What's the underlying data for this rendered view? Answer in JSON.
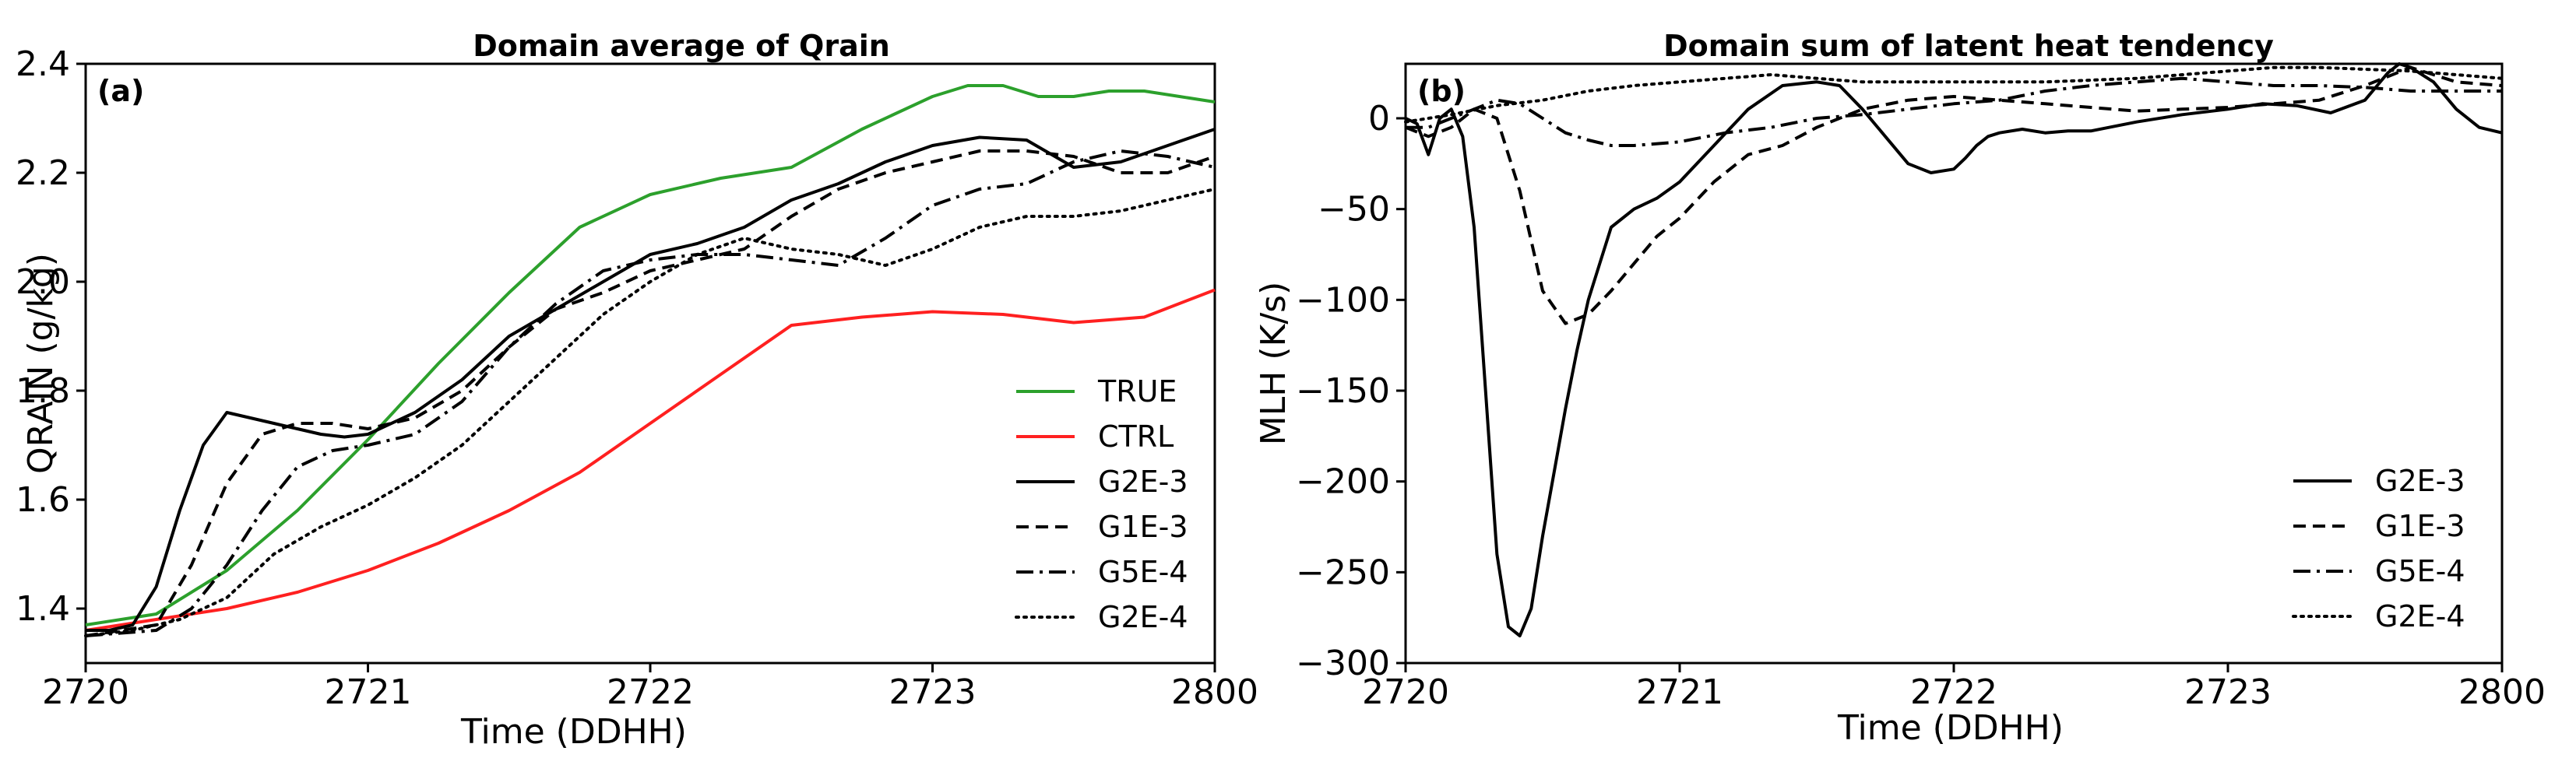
{
  "chart_data": [
    {
      "type": "line",
      "panel_label": "(a)",
      "title": "Domain average of Qrain",
      "xlabel": "Time (DDHH)",
      "ylabel": "QRAIN (g/kg)",
      "xlim": [
        0,
        96
      ],
      "ylim": [
        1.3,
        2.4
      ],
      "x_ticks": [
        0,
        24,
        48,
        72,
        96
      ],
      "x_tick_labels": [
        "2720",
        "2721",
        "2722",
        "2723",
        "2800"
      ],
      "y_ticks": [
        1.4,
        1.6,
        1.8,
        2.0,
        2.2,
        2.4
      ],
      "y_tick_labels": [
        "1.4",
        "1.6",
        "1.8",
        "2.0",
        "2.2",
        "2.4"
      ],
      "legend_position": "lower-right",
      "series": [
        {
          "name": "TRUE",
          "color": "#2ca02c",
          "dash": "solid",
          "x": [
            0,
            6,
            12,
            18,
            24,
            30,
            36,
            42,
            48,
            54,
            60,
            66,
            72,
            75,
            78,
            81,
            84,
            87,
            90,
            93,
            96
          ],
          "y": [
            1.37,
            1.39,
            1.47,
            1.58,
            1.71,
            1.85,
            1.98,
            2.1,
            2.16,
            2.19,
            2.21,
            2.28,
            2.34,
            2.36,
            2.36,
            2.34,
            2.34,
            2.35,
            2.35,
            2.34,
            2.33
          ]
        },
        {
          "name": "CTRL",
          "color": "#ff2020",
          "dash": "solid",
          "x": [
            0,
            6,
            12,
            18,
            24,
            30,
            36,
            42,
            48,
            54,
            60,
            66,
            72,
            78,
            84,
            90,
            96
          ],
          "y": [
            1.36,
            1.38,
            1.4,
            1.43,
            1.47,
            1.52,
            1.58,
            1.65,
            1.74,
            1.83,
            1.92,
            1.935,
            1.945,
            1.94,
            1.925,
            1.935,
            1.985
          ]
        },
        {
          "name": "G2E-3",
          "color": "#000000",
          "dash": "solid",
          "x": [
            0,
            2,
            4,
            6,
            8,
            10,
            12,
            14,
            16,
            18,
            20,
            22,
            24,
            28,
            32,
            36,
            40,
            44,
            48,
            52,
            56,
            60,
            64,
            68,
            72,
            76,
            80,
            84,
            88,
            92,
            96
          ],
          "y": [
            1.36,
            1.36,
            1.37,
            1.44,
            1.58,
            1.7,
            1.76,
            1.75,
            1.74,
            1.73,
            1.72,
            1.715,
            1.72,
            1.76,
            1.82,
            1.9,
            1.95,
            2.0,
            2.05,
            2.07,
            2.1,
            2.15,
            2.18,
            2.22,
            2.25,
            2.265,
            2.26,
            2.21,
            2.22,
            2.25,
            2.28
          ]
        },
        {
          "name": "G1E-3",
          "color": "#000000",
          "dash": "dashed",
          "x": [
            0,
            3,
            6,
            9,
            12,
            15,
            18,
            21,
            24,
            28,
            32,
            36,
            40,
            44,
            48,
            52,
            56,
            60,
            64,
            68,
            72,
            76,
            80,
            84,
            88,
            92,
            96
          ],
          "y": [
            1.35,
            1.36,
            1.37,
            1.48,
            1.63,
            1.72,
            1.74,
            1.74,
            1.73,
            1.75,
            1.8,
            1.88,
            1.95,
            1.98,
            2.02,
            2.04,
            2.06,
            2.12,
            2.17,
            2.2,
            2.22,
            2.24,
            2.24,
            2.23,
            2.2,
            2.2,
            2.23
          ]
        },
        {
          "name": "G5E-4",
          "color": "#000000",
          "dash": "dashdot",
          "x": [
            0,
            3,
            6,
            9,
            12,
            15,
            18,
            21,
            24,
            28,
            32,
            36,
            40,
            44,
            48,
            52,
            56,
            60,
            64,
            68,
            72,
            76,
            80,
            84,
            88,
            92,
            96
          ],
          "y": [
            1.35,
            1.355,
            1.36,
            1.4,
            1.48,
            1.58,
            1.66,
            1.69,
            1.7,
            1.72,
            1.78,
            1.88,
            1.96,
            2.02,
            2.04,
            2.05,
            2.05,
            2.04,
            2.03,
            2.08,
            2.14,
            2.17,
            2.18,
            2.22,
            2.24,
            2.23,
            2.21
          ]
        },
        {
          "name": "G2E-4",
          "color": "#000000",
          "dash": "dotted",
          "x": [
            0,
            4,
            8,
            12,
            16,
            20,
            24,
            28,
            32,
            36,
            40,
            44,
            48,
            52,
            56,
            60,
            64,
            68,
            72,
            76,
            80,
            84,
            88,
            92,
            96
          ],
          "y": [
            1.35,
            1.36,
            1.38,
            1.42,
            1.5,
            1.55,
            1.59,
            1.64,
            1.7,
            1.78,
            1.86,
            1.94,
            2.0,
            2.05,
            2.08,
            2.06,
            2.05,
            2.03,
            2.06,
            2.1,
            2.12,
            2.12,
            2.13,
            2.15,
            2.17
          ]
        }
      ]
    },
    {
      "type": "line",
      "panel_label": "(b)",
      "title": "Domain sum of latent heat tendency",
      "xlabel": "Time (DDHH)",
      "ylabel": "MLH (K/s)",
      "xlim": [
        0,
        96
      ],
      "ylim": [
        -300,
        30
      ],
      "x_ticks": [
        0,
        24,
        48,
        72,
        96
      ],
      "x_tick_labels": [
        "2720",
        "2721",
        "2722",
        "2723",
        "2800"
      ],
      "y_ticks": [
        0,
        -50,
        -100,
        -150,
        -200,
        -250,
        -300
      ],
      "y_tick_labels": [
        "0",
        "−50",
        "−100",
        "−150",
        "−200",
        "−250",
        "−300"
      ],
      "legend_position": "lower-right",
      "series": [
        {
          "name": "G2E-3",
          "color": "#000000",
          "dash": "solid",
          "x": [
            0,
            1,
            2,
            3,
            4,
            5,
            6,
            7,
            8,
            9,
            10,
            11,
            12,
            13,
            14,
            15,
            16,
            17,
            18,
            20,
            22,
            24,
            27,
            30,
            33,
            36,
            38,
            40,
            42,
            44,
            46,
            48,
            49,
            50,
            51,
            52,
            54,
            56,
            58,
            60,
            64,
            68,
            72,
            75,
            78,
            81,
            84,
            86,
            87,
            88,
            90,
            92,
            94,
            96
          ],
          "y": [
            0,
            -3,
            -20,
            0,
            5,
            -10,
            -60,
            -150,
            -240,
            -280,
            -285,
            -270,
            -230,
            -195,
            -160,
            -128,
            -100,
            -80,
            -60,
            -50,
            -44,
            -35,
            -15,
            5,
            18,
            20,
            18,
            5,
            -10,
            -25,
            -30,
            -28,
            -22,
            -15,
            -10,
            -8,
            -6,
            -8,
            -7,
            -7,
            -2,
            2,
            5,
            8,
            7,
            3,
            10,
            25,
            30,
            28,
            20,
            5,
            -5,
            -8
          ]
        },
        {
          "name": "G1E-3",
          "color": "#000000",
          "dash": "dashed",
          "x": [
            0,
            2,
            4,
            6,
            8,
            10,
            12,
            14,
            16,
            18,
            20,
            22,
            24,
            27,
            30,
            33,
            36,
            40,
            44,
            48,
            52,
            56,
            60,
            64,
            68,
            72,
            76,
            80,
            84,
            88,
            92,
            96
          ],
          "y": [
            -5,
            -10,
            -5,
            5,
            0,
            -40,
            -95,
            -113,
            -108,
            -95,
            -80,
            -65,
            -55,
            -35,
            -20,
            -15,
            -5,
            5,
            10,
            12,
            10,
            8,
            6,
            4,
            5,
            6,
            8,
            10,
            18,
            28,
            20,
            18
          ]
        },
        {
          "name": "G5E-4",
          "color": "#000000",
          "dash": "dashdot",
          "x": [
            0,
            2,
            4,
            6,
            8,
            10,
            12,
            14,
            16,
            18,
            20,
            24,
            28,
            32,
            36,
            40,
            44,
            48,
            52,
            56,
            60,
            64,
            68,
            72,
            76,
            80,
            84,
            88,
            92,
            96
          ],
          "y": [
            -5,
            -5,
            0,
            5,
            10,
            8,
            0,
            -8,
            -12,
            -15,
            -15,
            -13,
            -8,
            -5,
            0,
            2,
            5,
            8,
            10,
            15,
            18,
            20,
            22,
            20,
            18,
            18,
            17,
            15,
            15,
            15
          ]
        },
        {
          "name": "G2E-4",
          "color": "#000000",
          "dash": "dotted",
          "x": [
            0,
            4,
            8,
            12,
            16,
            20,
            24,
            28,
            32,
            36,
            40,
            44,
            48,
            52,
            56,
            60,
            64,
            68,
            72,
            76,
            80,
            84,
            88,
            92,
            96
          ],
          "y": [
            -2,
            2,
            7,
            10,
            15,
            18,
            20,
            22,
            24,
            22,
            20,
            20,
            20,
            20,
            20,
            21,
            22,
            24,
            26,
            28,
            28,
            27,
            26,
            24,
            22
          ]
        }
      ]
    }
  ]
}
